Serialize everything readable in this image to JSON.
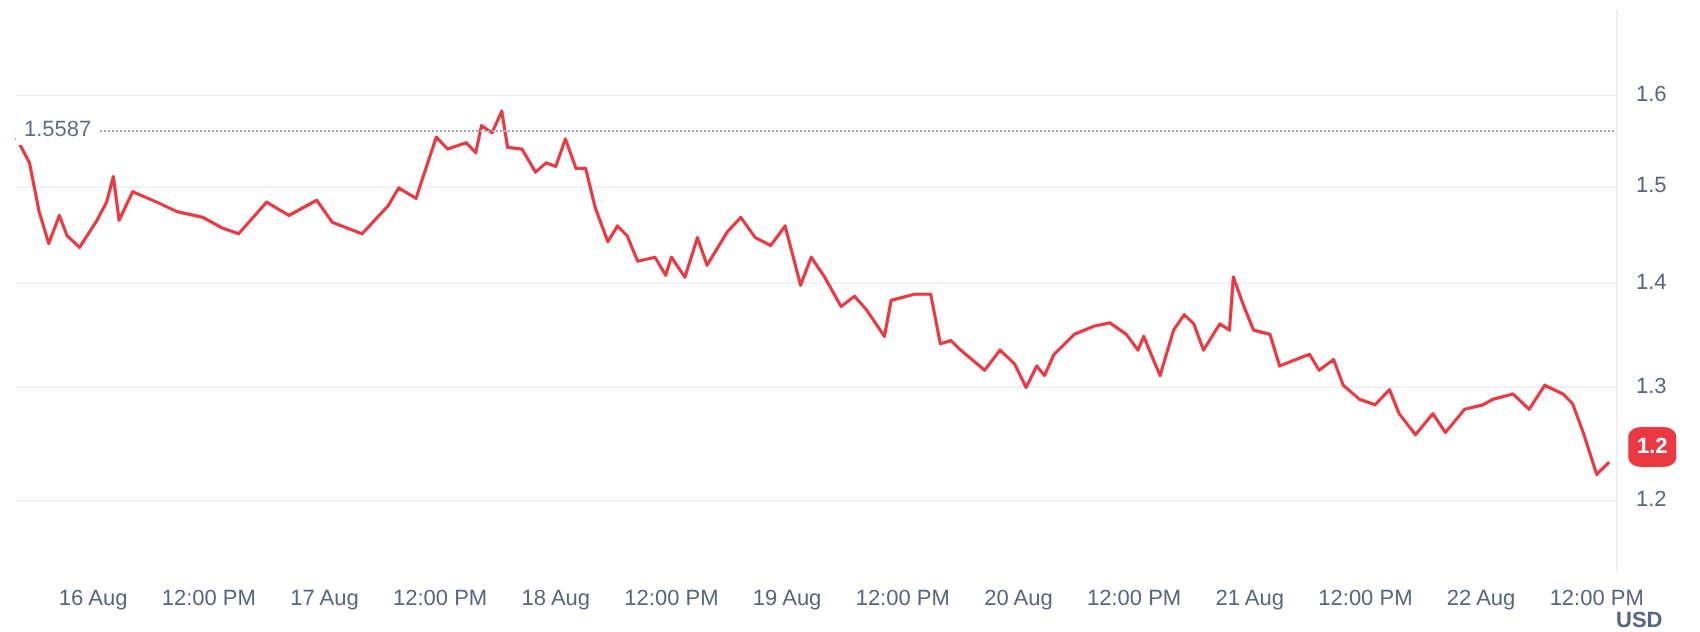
{
  "chart_data": {
    "type": "line",
    "ylabel": "USD",
    "log": "y",
    "grid": "y",
    "marker": "none",
    "line_style": "solid",
    "xlim": [
      "--08-15T16:00",
      "--08-22T14:00"
    ],
    "ylim": [
      1.14,
      1.7
    ],
    "yticks": [
      1.2,
      1.3,
      1.4,
      1.5,
      1.6
    ],
    "xticks": [
      {
        "value": "--08-16",
        "label": "16 Aug"
      },
      {
        "value": "--08-16T12:00",
        "label": "12:00 PM"
      },
      {
        "value": "--08-17",
        "label": "17 Aug"
      },
      {
        "value": "--08-17T12:00",
        "label": "12:00 PM"
      },
      {
        "value": "--08-18",
        "label": "18 Aug"
      },
      {
        "value": "--08-18T12:00",
        "label": "12:00 PM"
      },
      {
        "value": "--08-19",
        "label": "19 Aug"
      },
      {
        "value": "--08-19T12:00",
        "label": "12:00 PM"
      },
      {
        "value": "--08-20",
        "label": "20 Aug"
      },
      {
        "value": "--08-20T12:00",
        "label": "12:00 PM"
      },
      {
        "value": "--08-21",
        "label": "21 Aug"
      },
      {
        "value": "--08-21T12:00",
        "label": "12:00 PM"
      },
      {
        "value": "--08-22",
        "label": "22 Aug"
      },
      {
        "value": "--08-22T12:00",
        "label": "12:00 PM"
      }
    ],
    "ref_lines": [
      {
        "axis": "y",
        "value": 1.5587,
        "label": "1.5587",
        "color": "#a1a7bb",
        "line_style": "dotted"
      }
    ],
    "annotations": [
      {
        "text": "1.2",
        "x": "--08-22T13:12",
        "y": 1.232
      }
    ],
    "series": [
      {
        "color": "#ea3943",
        "x": [
          "--08-15T16:06",
          "--08-15T17:24",
          "--08-15T18:24",
          "--08-15T19:24",
          "--08-15T20:30",
          "--08-15T21:18",
          "--08-15T22:36",
          "--08-16T00:24",
          "--08-16T01:24",
          "--08-16T02:06",
          "--08-16T02:42",
          "--08-16T04:06",
          "--08-16T06:36",
          "--08-16T08:42",
          "--08-16T11:24",
          "--08-16T13:24",
          "--08-16T15:06",
          "--08-16T18:00",
          "--08-16T20:18",
          "--08-16T23:12",
          "--08-17T00:48",
          "--08-17T03:54",
          "--08-17T06:36",
          "--08-17T07:42",
          "--08-17T09:30",
          "--08-17T11:36",
          "--08-17T12:48",
          "--08-17T14:42",
          "--08-17T15:42",
          "--08-17T16:18",
          "--08-17T17:24",
          "--08-17T18:24",
          "--08-17T19:00",
          "--08-17T20:30",
          "--08-17T21:54",
          "--08-17T23:00",
          "--08-18T00:00",
          "--08-18T01:00",
          "--08-18T02:06",
          "--08-18T03:06",
          "--08-18T04:06",
          "--08-18T05:24",
          "--08-18T06:24",
          "--08-18T07:24",
          "--08-18T08:30",
          "--08-18T10:18",
          "--08-18T11:24",
          "--08-18T12:00",
          "--08-18T13:24",
          "--08-18T14:42",
          "--08-18T15:42",
          "--08-18T17:48",
          "--08-18T19:12",
          "--08-18T20:42",
          "--08-18T22:18",
          "--08-18T23:48",
          "--08-19T01:24",
          "--08-19T02:30",
          "--08-19T03:54",
          "--08-19T05:36",
          "--08-19T07:00",
          "--08-19T08:18",
          "--08-19T10:06",
          "--08-19T10:48",
          "--08-19T13:12",
          "--08-19T14:54",
          "--08-19T15:54",
          "--08-19T17:00",
          "--08-19T18:00",
          "--08-19T20:30",
          "--08-19T22:06",
          "--08-19T23:36",
          "--08-20T00:48",
          "--08-20T01:54",
          "--08-20T02:42",
          "--08-20T03:42",
          "--08-20T05:48",
          "--08-20T07:54",
          "--08-20T09:30",
          "--08-20T11:12",
          "--08-20T12:24",
          "--08-20T13:00",
          "--08-20T14:42",
          "--08-20T16:06",
          "--08-20T17:12",
          "--08-20T18:12",
          "--08-20T19:12",
          "--08-20T20:54",
          "--08-20T21:54",
          "--08-20T22:18",
          "--08-20T23:24",
          "--08-21T00:24",
          "--08-21T02:06",
          "--08-21T03:06",
          "--08-21T04:48",
          "--08-21T06:12",
          "--08-21T07:12",
          "--08-21T08:42",
          "--08-21T09:42",
          "--08-21T11:24",
          "--08-21T13:00",
          "--08-21T14:30",
          "--08-21T15:30",
          "--08-21T17:12",
          "--08-21T19:00",
          "--08-21T20:18",
          "--08-21T22:18",
          "--08-22T00:12",
          "--08-22T01:12",
          "--08-22T03:18",
          "--08-22T05:00",
          "--08-22T06:36",
          "--08-22T08:30",
          "--08-22T09:30",
          "--08-22T10:36",
          "--08-22T12:00",
          "--08-22T13:12"
        ],
        "values": [
          1.551,
          1.525,
          1.473,
          1.44,
          1.469,
          1.448,
          1.436,
          1.464,
          1.483,
          1.51,
          1.464,
          1.494,
          1.483,
          1.473,
          1.467,
          1.456,
          1.45,
          1.483,
          1.469,
          1.485,
          1.462,
          1.45,
          1.479,
          1.498,
          1.487,
          1.553,
          1.54,
          1.547,
          1.536,
          1.566,
          1.558,
          1.582,
          1.542,
          1.54,
          1.515,
          1.525,
          1.521,
          1.551,
          1.519,
          1.519,
          1.477,
          1.442,
          1.458,
          1.448,
          1.422,
          1.426,
          1.408,
          1.426,
          1.406,
          1.446,
          1.418,
          1.452,
          1.467,
          1.446,
          1.438,
          1.458,
          1.398,
          1.426,
          1.406,
          1.377,
          1.387,
          1.373,
          1.348,
          1.383,
          1.389,
          1.389,
          1.341,
          1.344,
          1.335,
          1.316,
          1.335,
          1.322,
          1.3,
          1.32,
          1.311,
          1.331,
          1.35,
          1.358,
          1.361,
          1.35,
          1.335,
          1.348,
          1.311,
          1.354,
          1.369,
          1.36,
          1.335,
          1.36,
          1.354,
          1.406,
          1.377,
          1.354,
          1.35,
          1.32,
          1.326,
          1.331,
          1.316,
          1.326,
          1.302,
          1.289,
          1.284,
          1.298,
          1.276,
          1.257,
          1.276,
          1.259,
          1.28,
          1.284,
          1.289,
          1.294,
          1.28,
          1.302,
          1.294,
          1.285,
          1.259,
          1.222,
          1.232
        ]
      }
    ]
  }
}
